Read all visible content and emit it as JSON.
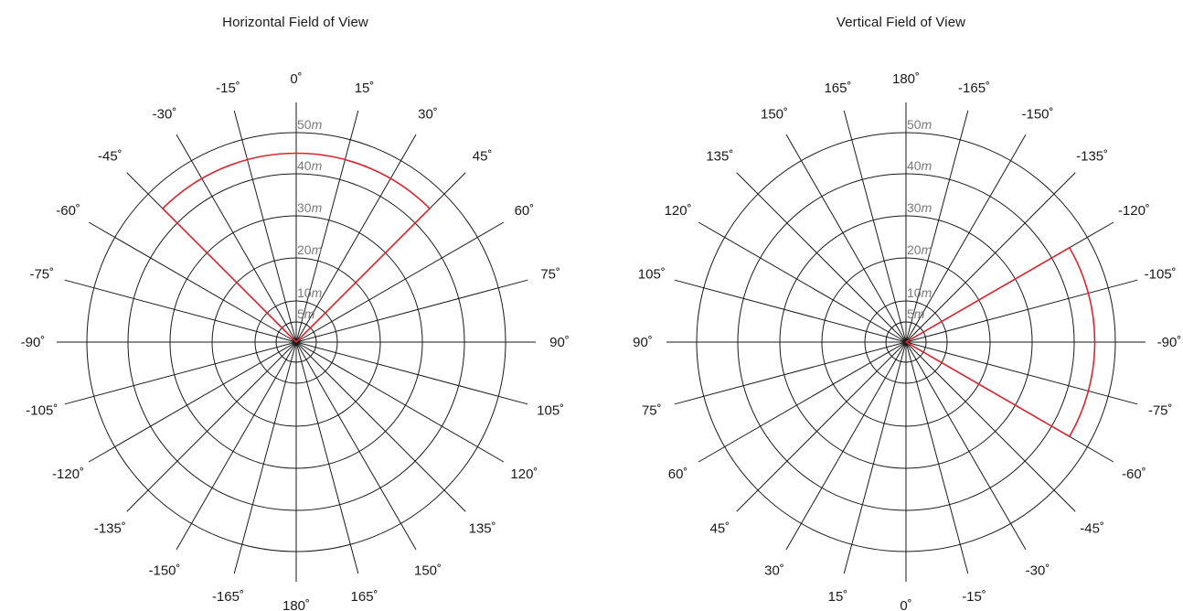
{
  "colors": {
    "grid": "#1a1a1a",
    "fov": "#d9262e",
    "range_label": "#7a7a7a"
  },
  "range_unit": "m",
  "charts": [
    {
      "title": "Horizontal Field of View",
      "angle_labels": [
        "0˚",
        "15˚",
        "30˚",
        "45˚",
        "60˚",
        "75˚",
        "90˚",
        "105˚",
        "120˚",
        "135˚",
        "150˚",
        "165˚",
        "180˚",
        "-165˚",
        "-150˚",
        "-135˚",
        "-120˚",
        "-105˚",
        "-90˚",
        "-75˚",
        "-60˚",
        "-45˚",
        "-30˚",
        "-15˚"
      ],
      "range_labels": [
        "5",
        "10",
        "20",
        "30",
        "40",
        "50"
      ],
      "fov": {
        "from_deg": -45,
        "to_deg": 45,
        "range_m": 45
      }
    },
    {
      "title": "Vertical Field of View",
      "angle_labels": [
        "-90˚",
        "-75˚",
        "-60˚",
        "-45˚",
        "-30˚",
        "-15˚",
        "0˚",
        "15˚",
        "30˚",
        "45˚",
        "60˚",
        "75˚",
        "90˚",
        "105˚",
        "120˚",
        "135˚",
        "150˚",
        "165˚",
        "180˚",
        "-165˚",
        "-150˚",
        "-135˚",
        "-120˚",
        "-105˚"
      ],
      "range_labels": [
        "5",
        "10",
        "20",
        "30",
        "40",
        "50"
      ],
      "fov": {
        "from_deg": -30,
        "to_deg": 30,
        "range_m": 45
      }
    }
  ]
}
